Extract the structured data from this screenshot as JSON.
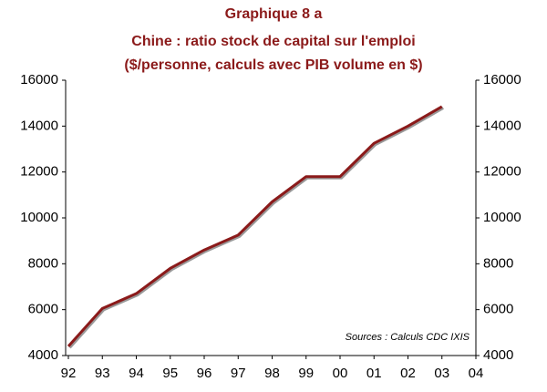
{
  "chart_data": {
    "type": "line",
    "title": "Graphique 8 a",
    "subtitle": [
      "Chine : ratio stock de capital sur l'emploi",
      "($/personne, calculs avec PIB volume en $)"
    ],
    "annotation": "Sources :  Calculs CDC IXIS",
    "categories": [
      "92",
      "93",
      "94",
      "95",
      "96",
      "97",
      "98",
      "99",
      "00",
      "01",
      "02",
      "03",
      "04"
    ],
    "series": [
      {
        "color": "#8b1a1a",
        "values": [
          4400,
          6050,
          6700,
          7800,
          8600,
          9250,
          10700,
          11800,
          11800,
          13250,
          14000,
          14850,
          null
        ]
      }
    ],
    "ylim": [
      4000,
      16000
    ],
    "yticks": [
      4000,
      6000,
      8000,
      10000,
      12000,
      14000,
      16000
    ],
    "y2lim": [
      4000,
      16000
    ],
    "y2ticks": [
      4000,
      6000,
      8000,
      10000,
      12000,
      14000,
      16000
    ],
    "grid": false
  }
}
